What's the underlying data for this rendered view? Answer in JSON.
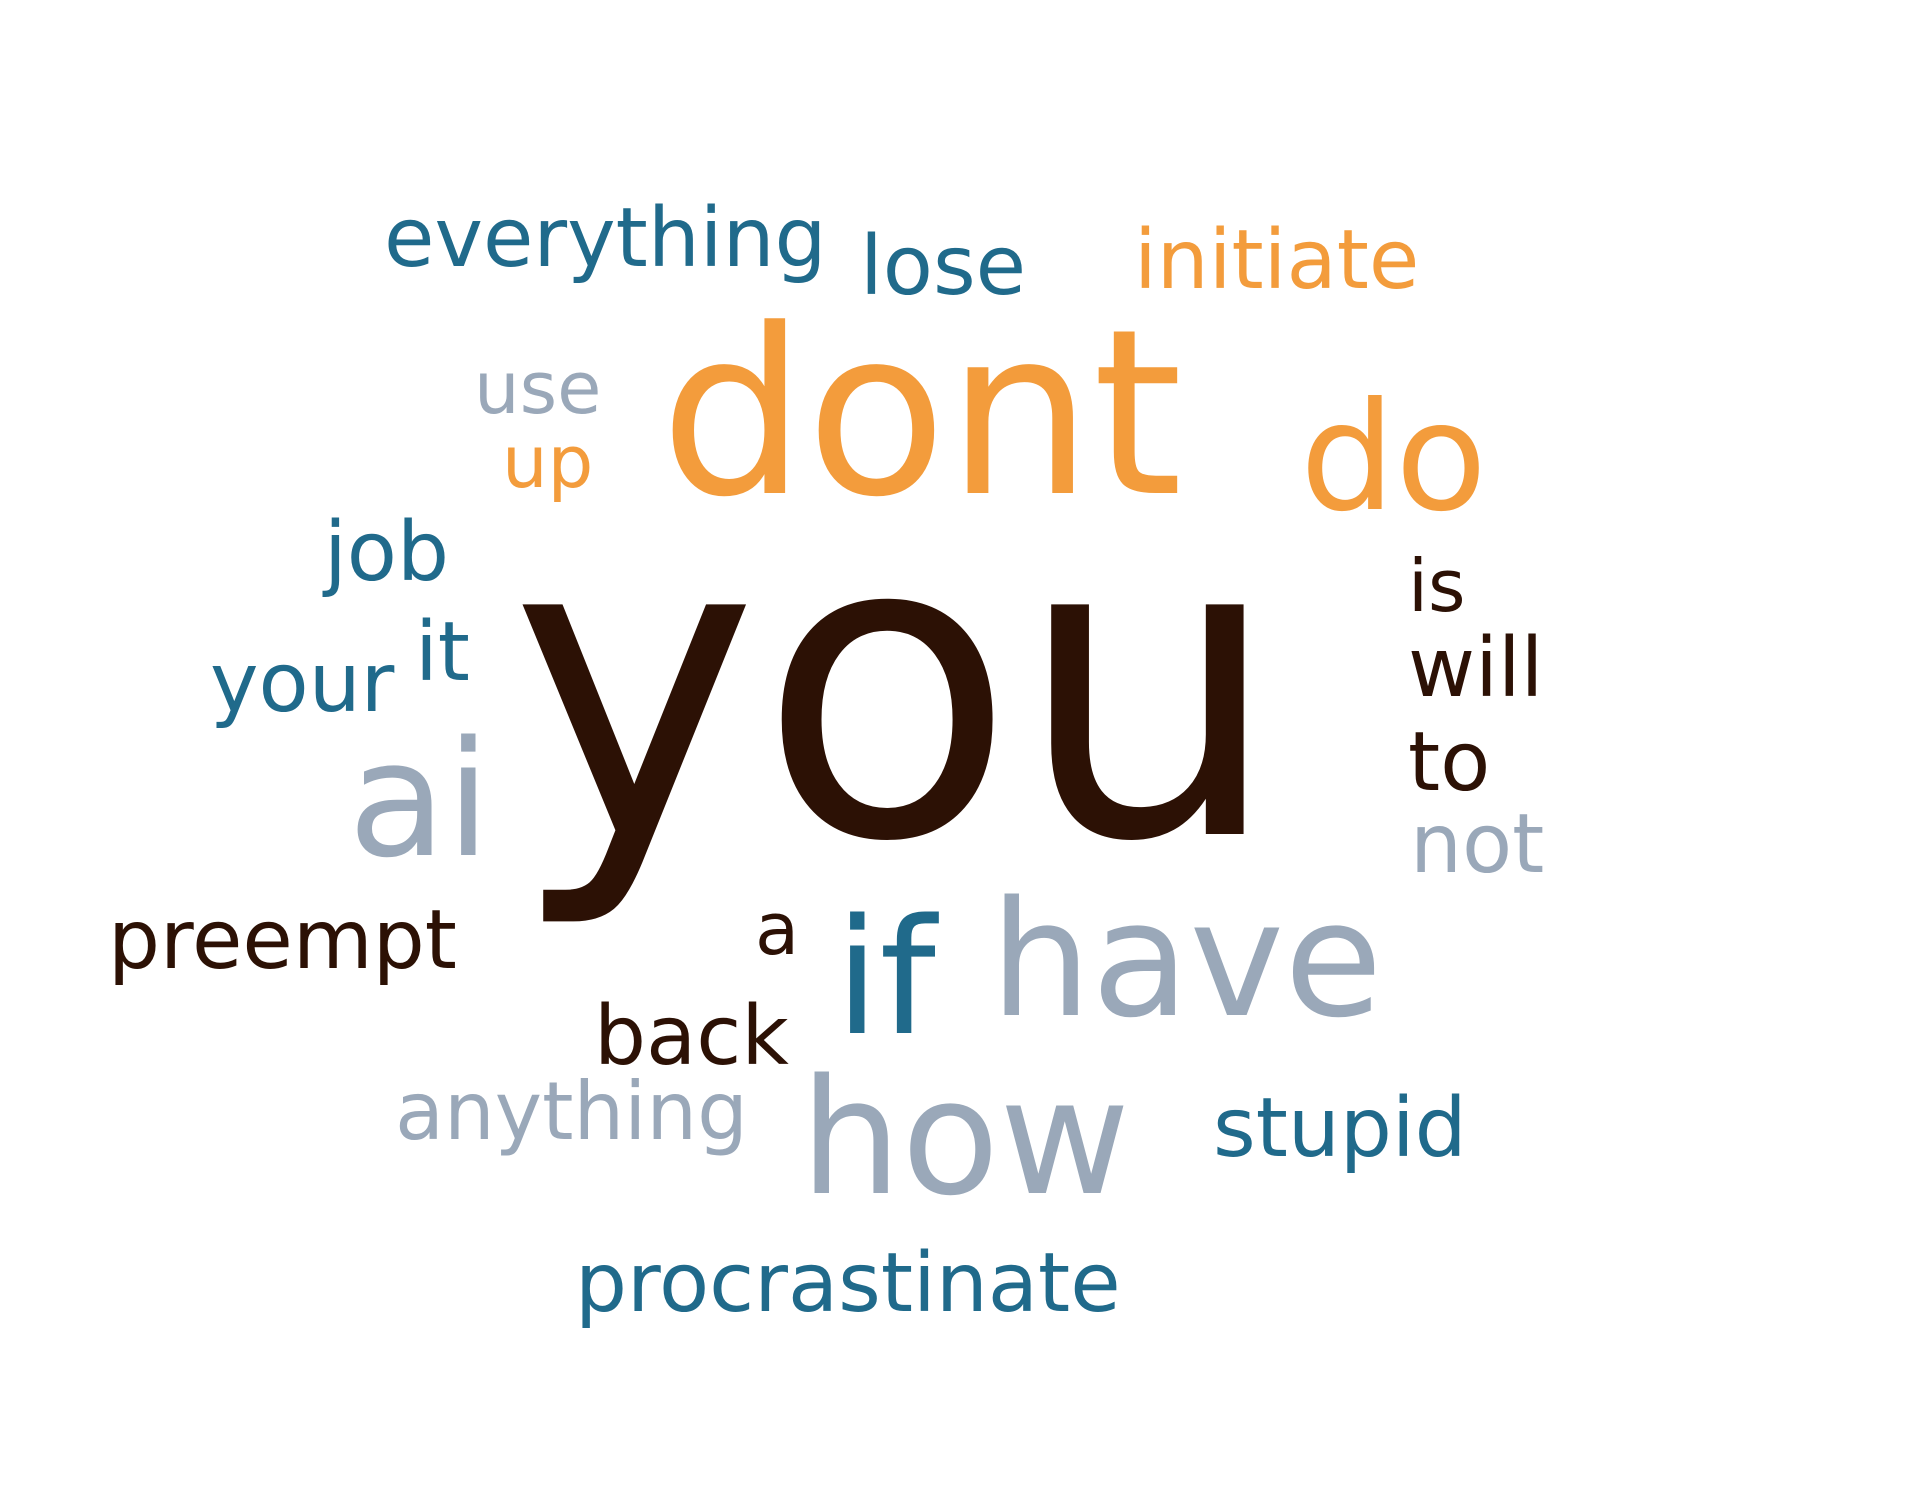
{
  "colors": {
    "orange": "#f39c3c",
    "teal": "#206a8b",
    "dark_brown": "#2c1105",
    "gray_blue": "#9aa8b9",
    "background": "#ffffff"
  },
  "words": [
    {
      "key": "you",
      "text": "you",
      "color": "#2c1105"
    },
    {
      "key": "dont",
      "text": "dont",
      "color": "#f39c3c"
    },
    {
      "key": "do",
      "text": "do",
      "color": "#f39c3c"
    },
    {
      "key": "everything",
      "text": "everything",
      "color": "#206a8b"
    },
    {
      "key": "lose",
      "text": "lose",
      "color": "#206a8b"
    },
    {
      "key": "initiate",
      "text": "initiate",
      "color": "#f39c3c"
    },
    {
      "key": "use",
      "text": "use",
      "color": "#9aa8b9"
    },
    {
      "key": "up",
      "text": "up",
      "color": "#f39c3c"
    },
    {
      "key": "job",
      "text": "job",
      "color": "#206a8b"
    },
    {
      "key": "your",
      "text": "your",
      "color": "#206a8b"
    },
    {
      "key": "it",
      "text": "it",
      "color": "#206a8b"
    },
    {
      "key": "ai",
      "text": "ai",
      "color": "#9aa8b9"
    },
    {
      "key": "preempt",
      "text": "preempt",
      "color": "#2c1105"
    },
    {
      "key": "a",
      "text": "a",
      "color": "#2c1105"
    },
    {
      "key": "if",
      "text": "if",
      "color": "#206a8b"
    },
    {
      "key": "have",
      "text": "have",
      "color": "#9aa8b9"
    },
    {
      "key": "back",
      "text": "back",
      "color": "#2c1105"
    },
    {
      "key": "anything",
      "text": "anything",
      "color": "#9aa8b9"
    },
    {
      "key": "how",
      "text": "how",
      "color": "#9aa8b9"
    },
    {
      "key": "stupid",
      "text": "stupid",
      "color": "#206a8b"
    },
    {
      "key": "procrastinate",
      "text": "procrastinate",
      "color": "#206a8b"
    },
    {
      "key": "is",
      "text": "is",
      "color": "#2c1105"
    },
    {
      "key": "will",
      "text": "will",
      "color": "#2c1105"
    },
    {
      "key": "to",
      "text": "to",
      "color": "#2c1105"
    },
    {
      "key": "not",
      "text": "not",
      "color": "#9aa8b9"
    }
  ]
}
